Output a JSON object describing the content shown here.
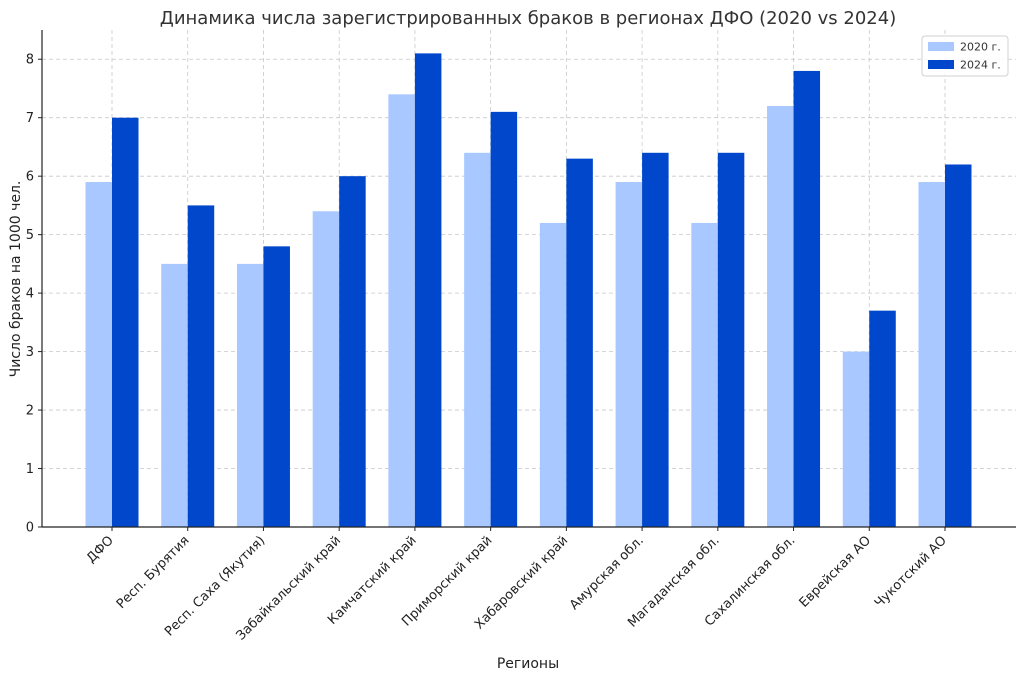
{
  "chart_data": {
    "type": "bar",
    "title": "Динамика числа зарегистрированных браков в регионах ДФО (2020 vs 2024)",
    "xlabel": "Регионы",
    "ylabel": "Число браков на 1000 чел.",
    "ylim": [
      0,
      8.5
    ],
    "yticks": [
      0,
      1,
      2,
      3,
      4,
      5,
      6,
      7,
      8
    ],
    "grid": true,
    "legend_position": "top-right",
    "categories": [
      "ДФО",
      "Респ. Бурятия",
      "Респ. Саха (Якутия)",
      "Забайкальский край",
      "Камчатский край",
      "Приморский край",
      "Хабаровский край",
      "Амурская обл.",
      "Магаданская обл.",
      "Сахалинская обл.",
      "Еврейская АО",
      "Чукотский АО"
    ],
    "series": [
      {
        "name": "2020 г.",
        "color": "#a9c8ff",
        "values": [
          5.9,
          4.5,
          4.5,
          5.4,
          7.4,
          6.4,
          5.2,
          5.9,
          5.2,
          7.2,
          3.0,
          5.9
        ]
      },
      {
        "name": "2024 г.",
        "color": "#0047cc",
        "values": [
          7.0,
          5.5,
          4.8,
          6.0,
          8.1,
          7.1,
          6.3,
          6.4,
          6.4,
          7.8,
          3.7,
          6.2
        ]
      }
    ]
  }
}
